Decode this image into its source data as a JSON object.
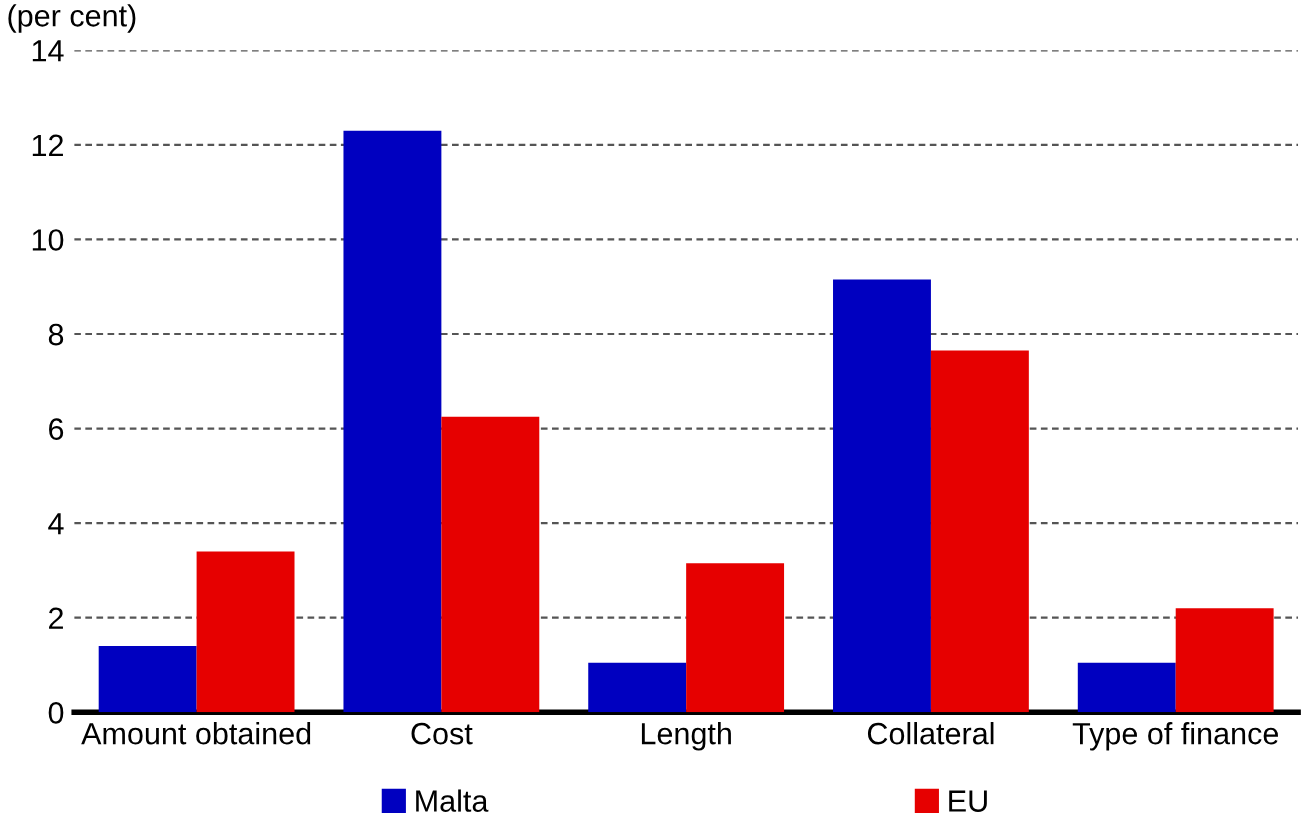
{
  "chart_data": {
    "type": "bar",
    "ylabel": "(per cent)",
    "categories": [
      "Amount obtained",
      "Cost",
      "Length",
      "Collateral",
      "Type of finance"
    ],
    "series": [
      {
        "name": "Malta",
        "color": "#0000c0",
        "values": [
          1.4,
          12.3,
          1.05,
          9.15,
          1.05
        ]
      },
      {
        "name": "EU",
        "color": "#e60000",
        "values": [
          3.4,
          6.25,
          3.15,
          7.65,
          2.2
        ]
      }
    ],
    "ylim": [
      0,
      14
    ],
    "yticks": [
      0,
      2,
      4,
      6,
      8,
      10,
      12,
      14
    ],
    "grid": "y",
    "legend": "bottom"
  }
}
